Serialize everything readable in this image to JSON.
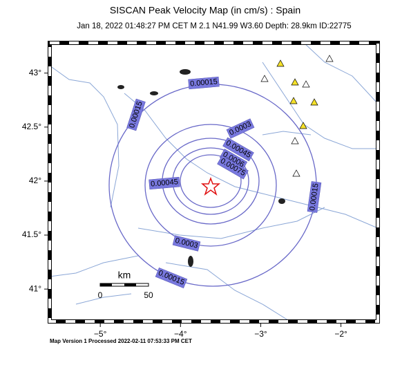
{
  "title": "SISCAN Peak Velocity Map (in cm/s) : Spain",
  "subtitle": "Jan 18, 2022 01:48:27 PM CET   M 2.1   N41.99 W3.60   Depth: 28.9km   ID:22775",
  "map": {
    "xlim": [
      -5.63,
      -1.54
    ],
    "ylim": [
      40.7,
      43.28
    ],
    "xticks": [
      {
        "value": -5,
        "label": "−5°"
      },
      {
        "value": -4,
        "label": "−4°"
      },
      {
        "value": -3,
        "label": "−3°"
      },
      {
        "value": -2,
        "label": "−2°"
      }
    ],
    "yticks": [
      {
        "value": 41,
        "label": "41°"
      },
      {
        "value": 41.5,
        "label": "41.5°"
      },
      {
        "value": 42,
        "label": "42°"
      },
      {
        "value": 42.5,
        "label": "42.5°"
      },
      {
        "value": 43,
        "label": "43°"
      }
    ],
    "contours": [
      {
        "level": 0.00015
      },
      {
        "level": 0.0003
      },
      {
        "level": 0.00045
      },
      {
        "level": 0.0006
      },
      {
        "level": 0.00075
      }
    ],
    "scale": {
      "unit": "km",
      "ticks": [
        0,
        50
      ]
    }
  },
  "footer": "Map Version 1 Processed 2022-02-11 07:53:33 PM CET"
}
